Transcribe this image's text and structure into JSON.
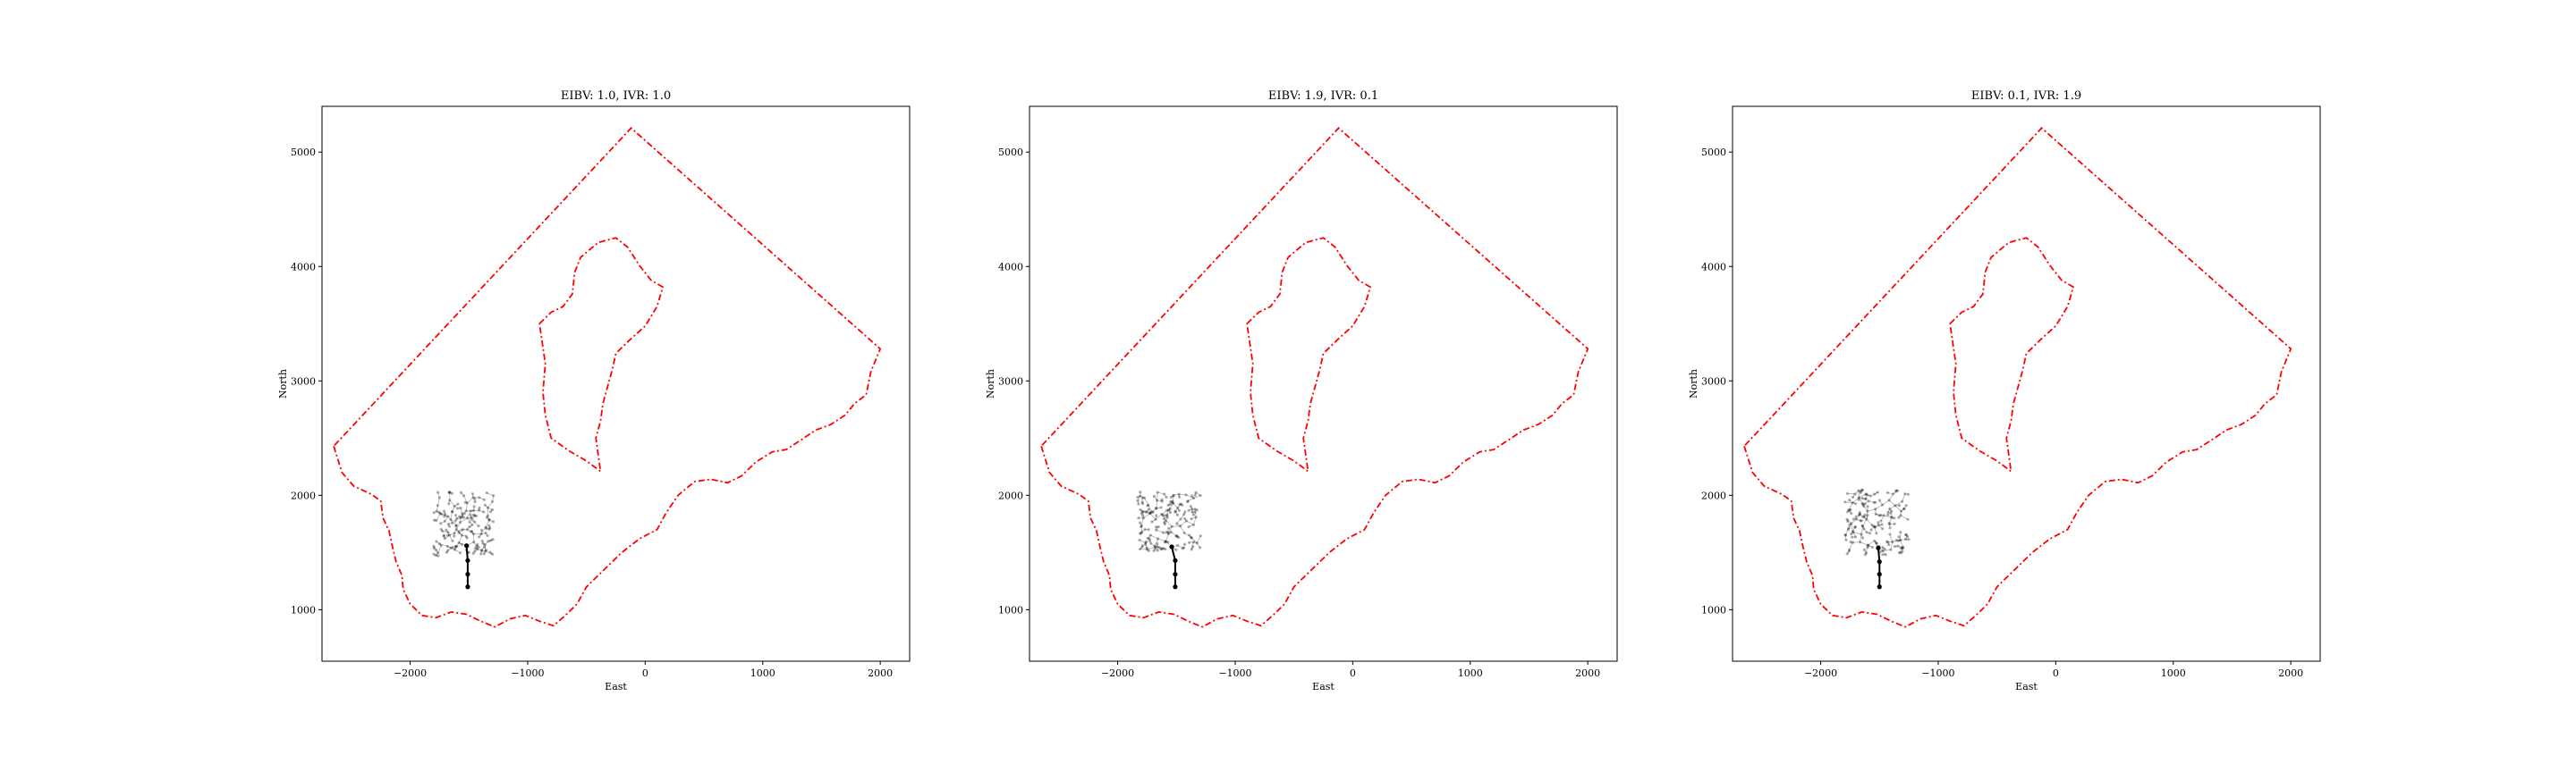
{
  "chart_data": [
    {
      "type": "line",
      "title": "EIBV: 1.0, IVR: 1.0",
      "xlabel": "East",
      "ylabel": "North",
      "xlim": [
        -2750,
        2250
      ],
      "ylim": [
        550,
        5400
      ],
      "xticks": [
        -2000,
        -1000,
        0,
        1000,
        2000
      ],
      "yticks": [
        1000,
        2000,
        3000,
        4000,
        5000
      ],
      "xtick_labels": [
        "−2000",
        "−1000",
        "0",
        "1000",
        "2000"
      ],
      "ytick_labels": [
        "1000",
        "2000",
        "3000",
        "4000",
        "5000"
      ],
      "grid": false,
      "boundary_color": "#ff0000",
      "tree_color": "#000000",
      "tree_seed": 11,
      "tree_center": [
        -1550,
        1750
      ],
      "tree_spread": [
        260,
        280
      ],
      "path_points": [
        [
          -1510,
          1200
        ],
        [
          -1510,
          1310
        ],
        [
          -1510,
          1430
        ],
        [
          -1520,
          1560
        ]
      ]
    },
    {
      "type": "line",
      "title": "EIBV: 1.9, IVR: 0.1",
      "xlabel": "East",
      "ylabel": "North",
      "xlim": [
        -2750,
        2250
      ],
      "ylim": [
        550,
        5400
      ],
      "xticks": [
        -2000,
        -1000,
        0,
        1000,
        2000
      ],
      "yticks": [
        1000,
        2000,
        3000,
        4000,
        5000
      ],
      "xtick_labels": [
        "−2000",
        "−1000",
        "0",
        "1000",
        "2000"
      ],
      "ytick_labels": [
        "1000",
        "2000",
        "3000",
        "4000",
        "5000"
      ],
      "grid": false,
      "boundary_color": "#ff0000",
      "tree_color": "#000000",
      "tree_seed": 23,
      "tree_center": [
        -1560,
        1770
      ],
      "tree_spread": [
        270,
        260
      ],
      "path_points": [
        [
          -1510,
          1200
        ],
        [
          -1510,
          1310
        ],
        [
          -1510,
          1430
        ],
        [
          -1540,
          1550
        ]
      ]
    },
    {
      "type": "line",
      "title": "EIBV: 0.1, IVR: 1.9",
      "xlabel": "East",
      "ylabel": "North",
      "xlim": [
        -2750,
        2250
      ],
      "ylim": [
        550,
        5400
      ],
      "xticks": [
        -2000,
        -1000,
        0,
        1000,
        2000
      ],
      "yticks": [
        1000,
        2000,
        3000,
        4000,
        5000
      ],
      "xtick_labels": [
        "−2000",
        "−1000",
        "0",
        "1000",
        "2000"
      ],
      "ytick_labels": [
        "1000",
        "2000",
        "3000",
        "4000",
        "5000"
      ],
      "grid": false,
      "boundary_color": "#ff0000",
      "tree_color": "#000000",
      "tree_seed": 37,
      "tree_center": [
        -1520,
        1760
      ],
      "tree_spread": [
        280,
        290
      ],
      "path_points": [
        [
          -1500,
          1200
        ],
        [
          -1500,
          1310
        ],
        [
          -1500,
          1420
        ],
        [
          -1510,
          1540
        ]
      ]
    }
  ],
  "polygons": {
    "outer": [
      [
        -2650,
        2430
      ],
      [
        -2580,
        2200
      ],
      [
        -2480,
        2080
      ],
      [
        -2330,
        2010
      ],
      [
        -2250,
        1950
      ],
      [
        -2230,
        1800
      ],
      [
        -2180,
        1690
      ],
      [
        -2150,
        1550
      ],
      [
        -2120,
        1420
      ],
      [
        -2070,
        1300
      ],
      [
        -2060,
        1180
      ],
      [
        -2000,
        1050
      ],
      [
        -1900,
        950
      ],
      [
        -1780,
        930
      ],
      [
        -1650,
        980
      ],
      [
        -1520,
        960
      ],
      [
        -1400,
        900
      ],
      [
        -1280,
        850
      ],
      [
        -1150,
        920
      ],
      [
        -1020,
        950
      ],
      [
        -900,
        900
      ],
      [
        -780,
        860
      ],
      [
        -680,
        950
      ],
      [
        -580,
        1050
      ],
      [
        -500,
        1200
      ],
      [
        -350,
        1350
      ],
      [
        -200,
        1500
      ],
      [
        -50,
        1620
      ],
      [
        100,
        1700
      ],
      [
        180,
        1850
      ],
      [
        280,
        2000
      ],
      [
        420,
        2120
      ],
      [
        560,
        2140
      ],
      [
        700,
        2110
      ],
      [
        820,
        2170
      ],
      [
        940,
        2290
      ],
      [
        1080,
        2380
      ],
      [
        1200,
        2400
      ],
      [
        1320,
        2480
      ],
      [
        1450,
        2570
      ],
      [
        1580,
        2620
      ],
      [
        1700,
        2700
      ],
      [
        1780,
        2800
      ],
      [
        1880,
        2880
      ],
      [
        1920,
        3080
      ],
      [
        2000,
        3280
      ],
      [
        -120,
        5210
      ],
      [
        -2650,
        2430
      ]
    ],
    "inner": [
      [
        -900,
        3500
      ],
      [
        -800,
        3600
      ],
      [
        -700,
        3650
      ],
      [
        -620,
        3760
      ],
      [
        -600,
        3950
      ],
      [
        -550,
        4080
      ],
      [
        -400,
        4210
      ],
      [
        -250,
        4250
      ],
      [
        -150,
        4170
      ],
      [
        -50,
        4010
      ],
      [
        50,
        3880
      ],
      [
        150,
        3820
      ],
      [
        100,
        3650
      ],
      [
        0,
        3480
      ],
      [
        -130,
        3360
      ],
      [
        -250,
        3240
      ],
      [
        -280,
        3100
      ],
      [
        -320,
        2950
      ],
      [
        -360,
        2800
      ],
      [
        -380,
        2650
      ],
      [
        -420,
        2500
      ],
      [
        -380,
        2210
      ],
      [
        -500,
        2300
      ],
      [
        -650,
        2390
      ],
      [
        -800,
        2500
      ],
      [
        -850,
        2700
      ],
      [
        -870,
        2900
      ],
      [
        -850,
        3150
      ],
      [
        -900,
        3500
      ]
    ]
  }
}
